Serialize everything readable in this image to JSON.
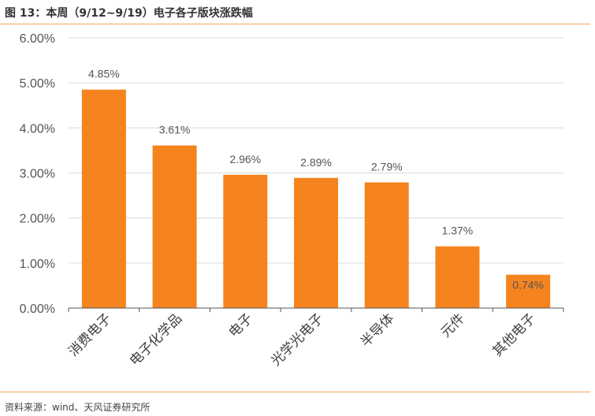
{
  "figure": {
    "title": "图 13：本周（9/12~9/19）电子各子版块涨跌幅",
    "source": "资料来源：wind、天风证券研究所"
  },
  "colors": {
    "bar": "#F5841F",
    "rule": "#F5A25D",
    "grid": "#D9D9D9",
    "axis": "#555555"
  },
  "chart_data": {
    "type": "bar",
    "categories": [
      "消费电子",
      "电子化学品",
      "电子",
      "光学光电子",
      "半导体",
      "元件",
      "其他电子"
    ],
    "values": [
      4.85,
      3.61,
      2.96,
      2.89,
      2.79,
      1.37,
      0.74
    ],
    "value_labels": [
      "4.85%",
      "3.61%",
      "2.96%",
      "2.89%",
      "2.79%",
      "1.37%",
      "0.74%"
    ],
    "yticks": [
      0,
      1,
      2,
      3,
      4,
      5,
      6
    ],
    "ytick_labels": [
      "0.00%",
      "1.00%",
      "2.00%",
      "3.00%",
      "4.00%",
      "5.00%",
      "6.00%"
    ],
    "ylim": [
      0,
      6
    ],
    "grid": true,
    "legend": "none",
    "title": "",
    "xlabel": "",
    "ylabel": ""
  }
}
